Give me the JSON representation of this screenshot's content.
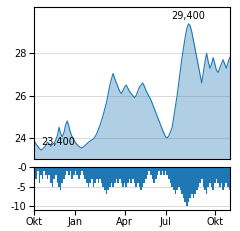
{
  "chart_data": [
    {
      "type": "area",
      "categories": [
        "Okt",
        null,
        null,
        null,
        null,
        null,
        null,
        null,
        null,
        null,
        null,
        null,
        null,
        null,
        null,
        null,
        null,
        null,
        null,
        null,
        null,
        null,
        null,
        null,
        null,
        "Jan",
        null,
        null,
        null,
        null,
        null,
        null,
        null,
        null,
        null,
        null,
        null,
        null,
        null,
        null,
        null,
        null,
        null,
        null,
        null,
        null,
        null,
        null,
        null,
        null,
        null,
        null,
        null,
        null,
        null,
        "Apr",
        null,
        null,
        null,
        null,
        null,
        null,
        null,
        null,
        null,
        null,
        null,
        null,
        null,
        null,
        null,
        null,
        null,
        null,
        null,
        null,
        null,
        null,
        null,
        null,
        "Jul",
        null,
        null,
        null,
        null,
        null,
        null,
        null,
        null,
        null,
        null,
        null,
        null,
        null,
        null,
        null,
        null,
        null,
        null,
        null,
        null,
        null,
        null,
        null,
        null,
        null,
        null,
        null,
        null,
        null,
        "Okt",
        null,
        null,
        null,
        null,
        null,
        null,
        null,
        null,
        null
      ],
      "values": [
        23.85,
        23.7,
        23.6,
        23.5,
        23.42,
        23.48,
        23.55,
        23.65,
        23.8,
        23.72,
        23.6,
        23.68,
        23.75,
        23.9,
        24.1,
        24.5,
        24.2,
        24.05,
        24.25,
        24.6,
        24.8,
        24.55,
        24.25,
        24.05,
        23.9,
        23.78,
        23.68,
        23.6,
        23.55,
        23.52,
        23.58,
        23.65,
        23.72,
        23.8,
        23.85,
        23.9,
        23.95,
        24.05,
        24.2,
        24.4,
        24.6,
        24.85,
        25.1,
        25.4,
        25.7,
        26.1,
        26.5,
        26.8,
        27.05,
        26.8,
        26.6,
        26.4,
        26.2,
        26.1,
        26.25,
        26.4,
        26.5,
        26.35,
        26.2,
        26.1,
        26.0,
        25.9,
        26.0,
        26.2,
        26.4,
        26.5,
        26.6,
        26.45,
        26.25,
        26.1,
        25.95,
        25.8,
        25.6,
        25.4,
        25.2,
        25.0,
        24.8,
        24.6,
        24.4,
        24.2,
        24.05,
        24.0,
        24.1,
        24.3,
        24.5,
        25.0,
        25.5,
        26.0,
        26.6,
        27.2,
        27.8,
        28.3,
        28.8,
        29.2,
        29.4,
        29.3,
        29.0,
        28.6,
        28.2,
        27.8,
        27.4,
        27.0,
        26.6,
        27.1,
        27.6,
        28.0,
        27.6,
        27.3,
        27.5,
        27.8,
        27.5,
        27.2,
        27.1,
        27.3,
        27.5,
        27.7,
        27.5,
        27.3,
        27.55,
        27.8
      ],
      "ylim": [
        23.0,
        30.2
      ],
      "yticks": [
        24,
        26,
        28
      ],
      "grid": true,
      "tick_labels": "y",
      "annotations": [
        "23,400",
        "29,400"
      ]
    },
    {
      "type": "bar",
      "categories": [
        "Okt",
        null,
        null,
        null,
        null,
        null,
        null,
        null,
        null,
        null,
        null,
        null,
        null,
        null,
        null,
        null,
        null,
        null,
        null,
        null,
        null,
        null,
        null,
        null,
        null,
        "Jan",
        null,
        null,
        null,
        null,
        null,
        null,
        null,
        null,
        null,
        null,
        null,
        null,
        null,
        null,
        null,
        null,
        null,
        null,
        null,
        null,
        null,
        null,
        null,
        null,
        null,
        null,
        null,
        null,
        null,
        "Apr",
        null,
        null,
        null,
        null,
        null,
        null,
        null,
        null,
        null,
        null,
        null,
        null,
        null,
        null,
        null,
        null,
        null,
        null,
        null,
        null,
        null,
        null,
        null,
        null,
        "Jul",
        null,
        null,
        null,
        null,
        null,
        null,
        null,
        null,
        null,
        null,
        null,
        null,
        null,
        null,
        null,
        null,
        null,
        null,
        null,
        null,
        null,
        null,
        null,
        null,
        null,
        null,
        null,
        null,
        null,
        "Okt",
        null,
        null,
        null,
        null,
        null,
        null,
        null,
        null,
        null
      ],
      "values": [
        -2,
        -3,
        -1,
        -4,
        -2,
        -3,
        -1,
        -2,
        -3,
        -2,
        -4,
        -5,
        -3,
        -2,
        -4,
        -5,
        -6,
        -4,
        -3,
        -2,
        -1,
        -2,
        -1,
        -3,
        -2,
        -1,
        -2,
        -3,
        -2,
        -1,
        -2,
        -3,
        -4,
        -5,
        -4,
        -3,
        -5,
        -4,
        -3,
        -4,
        -3,
        -4,
        -5,
        -6,
        -7,
        -6,
        -5,
        -4,
        -5,
        -4,
        -3,
        -4,
        -3,
        -4,
        -5,
        -4,
        -5,
        -4,
        -3,
        -4,
        -3,
        -4,
        -5,
        -4,
        -5,
        -6,
        -5,
        -4,
        -3,
        -2,
        -1,
        -2,
        -3,
        -4,
        -3,
        -2,
        -1,
        -2,
        -1,
        -2,
        -1,
        -2,
        -3,
        -4,
        -5,
        -6,
        -7,
        -6,
        -5,
        -6,
        -7,
        -8,
        -9,
        -10,
        -9,
        -8,
        -7,
        -8,
        -7,
        -6,
        -5,
        -4,
        -3,
        -5,
        -6,
        -7,
        -5,
        -4,
        -5,
        -6,
        -4,
        -3,
        -4,
        -5,
        -4,
        -6,
        -5,
        -4,
        -5,
        -6
      ],
      "ylim": [
        -11,
        0
      ],
      "yticks": [
        {
          "value": 0,
          "label": "-0"
        },
        -5,
        -10
      ],
      "grid": true
    }
  ]
}
